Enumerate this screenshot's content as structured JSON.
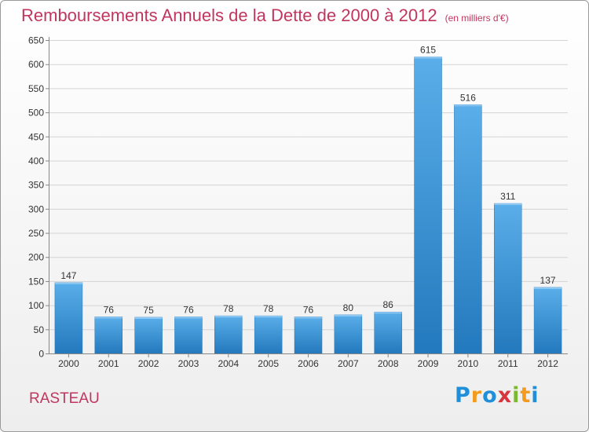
{
  "header": {
    "title": "Remboursements Annuels de la Dette de 2000 à 2012",
    "unit": "(en milliers d'€)"
  },
  "commune": "RASTEAU",
  "logo": {
    "letters": [
      "P",
      "r",
      "o",
      "x",
      "i",
      "t",
      "i"
    ],
    "colors": [
      "#1e8fd8",
      "#f29b1d",
      "#1e8fd8",
      "#d8343d",
      "#7cb82f",
      "#f29b1d",
      "#1e8fd8"
    ]
  },
  "chart_data": {
    "type": "bar",
    "categories": [
      "2000",
      "2001",
      "2002",
      "2003",
      "2004",
      "2005",
      "2006",
      "2007",
      "2008",
      "2009",
      "2010",
      "2011",
      "2012"
    ],
    "values": [
      147,
      76,
      75,
      76,
      78,
      78,
      76,
      80,
      86,
      615,
      516,
      311,
      137
    ],
    "data_labels": [
      "147",
      "76",
      "75",
      "76",
      "78",
      "78",
      "76",
      "80",
      "86",
      "615",
      "516",
      "311",
      "137"
    ],
    "title": "Remboursements Annuels de la Dette de 2000 à 2012",
    "subtitle": "(en milliers d'€)",
    "xlabel": "",
    "ylabel": "",
    "ylim": [
      0,
      650
    ],
    "yticks": [
      0,
      50,
      100,
      150,
      200,
      250,
      300,
      350,
      400,
      450,
      500,
      550,
      600,
      650
    ],
    "grid": true,
    "bar_color": "#3d9be0"
  }
}
